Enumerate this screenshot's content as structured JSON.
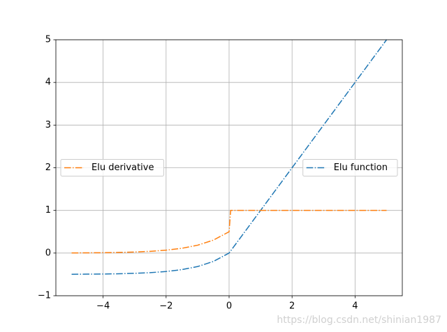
{
  "chart_data": {
    "type": "line",
    "x": [
      -5,
      -4.5,
      -4,
      -3.5,
      -3,
      -2.5,
      -2,
      -1.5,
      -1,
      -0.5,
      0,
      0.05,
      0.5,
      1,
      1.5,
      2,
      2.5,
      3,
      3.5,
      4,
      4.5,
      5
    ],
    "series": [
      {
        "name": "Elu function",
        "color": "#1f77b4",
        "linestyle": "-.",
        "legend_loc": "center right",
        "values": [
          -0.497,
          -0.494,
          -0.491,
          -0.485,
          -0.475,
          -0.459,
          -0.432,
          -0.388,
          -0.316,
          -0.197,
          0,
          0.05,
          0.5,
          1,
          1.5,
          2,
          2.5,
          3,
          3.5,
          4,
          4.5,
          5
        ]
      },
      {
        "name": "Elu derivative",
        "color": "#ff7f0e",
        "linestyle": "-.",
        "legend_loc": "center left",
        "values": [
          0.003,
          0.006,
          0.009,
          0.015,
          0.025,
          0.041,
          0.068,
          0.112,
          0.184,
          0.303,
          0.5,
          1,
          1,
          1,
          1,
          1,
          1,
          1,
          1,
          1,
          1,
          1
        ]
      }
    ],
    "xlim": [
      -5.5,
      5.5
    ],
    "ylim": [
      -1,
      5
    ],
    "xticks": [
      {
        "value": -4,
        "label": "−4"
      },
      {
        "value": -2,
        "label": "−2"
      },
      0,
      2,
      4
    ],
    "yticks": [
      {
        "value": -1,
        "label": "−1"
      },
      0,
      1,
      2,
      3,
      4,
      5
    ],
    "grid": true,
    "watermark": "https://blog.csdn.net/shinian1987"
  }
}
